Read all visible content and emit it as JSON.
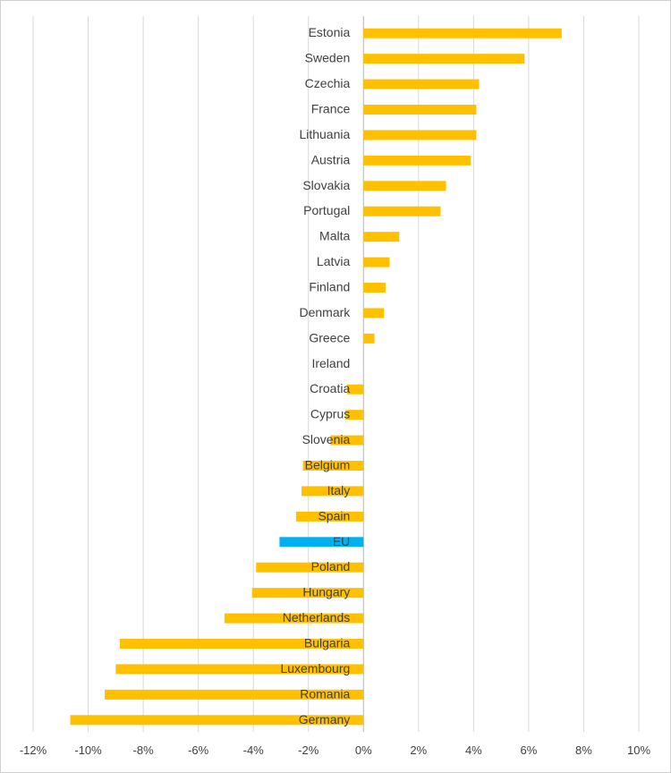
{
  "chart_data": {
    "type": "bar",
    "orientation": "horizontal",
    "title": "",
    "xlabel": "",
    "ylabel": "",
    "xlim": [
      -12,
      10
    ],
    "x_ticks": [
      "-12%",
      "-10%",
      "-8%",
      "-6%",
      "-4%",
      "-2%",
      "0%",
      "2%",
      "4%",
      "6%",
      "8%",
      "10%"
    ],
    "grid": "vertical",
    "legend": "none",
    "colors": {
      "default": "#FFC000",
      "highlight": "#00B0F0"
    },
    "categories": [
      "Estonia",
      "Sweden",
      "Czechia",
      "France",
      "Lithuania",
      "Austria",
      "Slovakia",
      "Portugal",
      "Malta",
      "Latvia",
      "Finland",
      "Denmark",
      "Greece",
      "Ireland",
      "Croatia",
      "Cyprus",
      "Slovenia",
      "Belgium",
      "Italy",
      "Spain",
      "EU",
      "Poland",
      "Hungary",
      "Netherlands",
      "Bulgaria",
      "Luxembourg",
      "Romania",
      "Germany"
    ],
    "values": [
      7.2,
      5.85,
      4.2,
      4.1,
      4.1,
      3.9,
      3.0,
      2.8,
      1.3,
      0.95,
      0.8,
      0.75,
      0.4,
      0.0,
      -0.6,
      -0.65,
      -1.2,
      -2.2,
      -2.25,
      -2.45,
      -3.05,
      -3.9,
      -4.05,
      -5.05,
      -8.85,
      -9.0,
      -9.4,
      -10.65
    ],
    "highlight": [
      "EU"
    ]
  }
}
